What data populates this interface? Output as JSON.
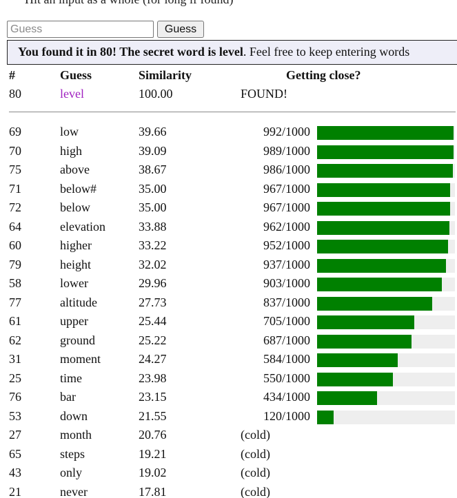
{
  "top_clipped_text": "Hit an input as a whole (for long if found)",
  "input": {
    "placeholder": "Guess",
    "value": ""
  },
  "guess_button_label": "Guess",
  "banner": {
    "bold": "You found it in 80! The secret word is level",
    "rest": ". Feel free to keep entering words"
  },
  "table": {
    "headers": {
      "num": "#",
      "guess": "Guess",
      "similarity": "Similarity",
      "close": "Getting close?"
    },
    "found_row": {
      "num": "80",
      "guess": "level",
      "similarity": "100.00",
      "status": "FOUND!"
    },
    "rows": [
      {
        "num": "69",
        "guess": "low",
        "similarity": "39.66",
        "rank": "992/1000",
        "fill": 0.992
      },
      {
        "num": "70",
        "guess": "high",
        "similarity": "39.09",
        "rank": "989/1000",
        "fill": 0.989
      },
      {
        "num": "75",
        "guess": "above",
        "similarity": "38.67",
        "rank": "986/1000",
        "fill": 0.986
      },
      {
        "num": "71",
        "guess": "below#",
        "similarity": "35.00",
        "rank": "967/1000",
        "fill": 0.967
      },
      {
        "num": "72",
        "guess": "below",
        "similarity": "35.00",
        "rank": "967/1000",
        "fill": 0.967
      },
      {
        "num": "64",
        "guess": "elevation",
        "similarity": "33.88",
        "rank": "962/1000",
        "fill": 0.962
      },
      {
        "num": "60",
        "guess": "higher",
        "similarity": "33.22",
        "rank": "952/1000",
        "fill": 0.952
      },
      {
        "num": "79",
        "guess": "height",
        "similarity": "32.02",
        "rank": "937/1000",
        "fill": 0.937
      },
      {
        "num": "58",
        "guess": "lower",
        "similarity": "29.96",
        "rank": "903/1000",
        "fill": 0.903
      },
      {
        "num": "77",
        "guess": "altitude",
        "similarity": "27.73",
        "rank": "837/1000",
        "fill": 0.837
      },
      {
        "num": "61",
        "guess": "upper",
        "similarity": "25.44",
        "rank": "705/1000",
        "fill": 0.705
      },
      {
        "num": "62",
        "guess": "ground",
        "similarity": "25.22",
        "rank": "687/1000",
        "fill": 0.687
      },
      {
        "num": "31",
        "guess": "moment",
        "similarity": "24.27",
        "rank": "584/1000",
        "fill": 0.584
      },
      {
        "num": "25",
        "guess": "time",
        "similarity": "23.98",
        "rank": "550/1000",
        "fill": 0.55
      },
      {
        "num": "76",
        "guess": "bar",
        "similarity": "23.15",
        "rank": "434/1000",
        "fill": 0.434
      },
      {
        "num": "53",
        "guess": "down",
        "similarity": "21.55",
        "rank": "120/1000",
        "fill": 0.12
      },
      {
        "num": "27",
        "guess": "month",
        "similarity": "20.76",
        "cold": "(cold)"
      },
      {
        "num": "65",
        "guess": "steps",
        "similarity": "19.21",
        "cold": "(cold)"
      },
      {
        "num": "43",
        "guess": "only",
        "similarity": "19.02",
        "cold": "(cold)"
      },
      {
        "num": "21",
        "guess": "never",
        "similarity": "17.81",
        "cold": "(cold)"
      }
    ]
  },
  "colors": {
    "bar": "#008000",
    "track": "#eeeeee",
    "found_word": "#a020c0",
    "banner_bg": "#eeeef8"
  }
}
